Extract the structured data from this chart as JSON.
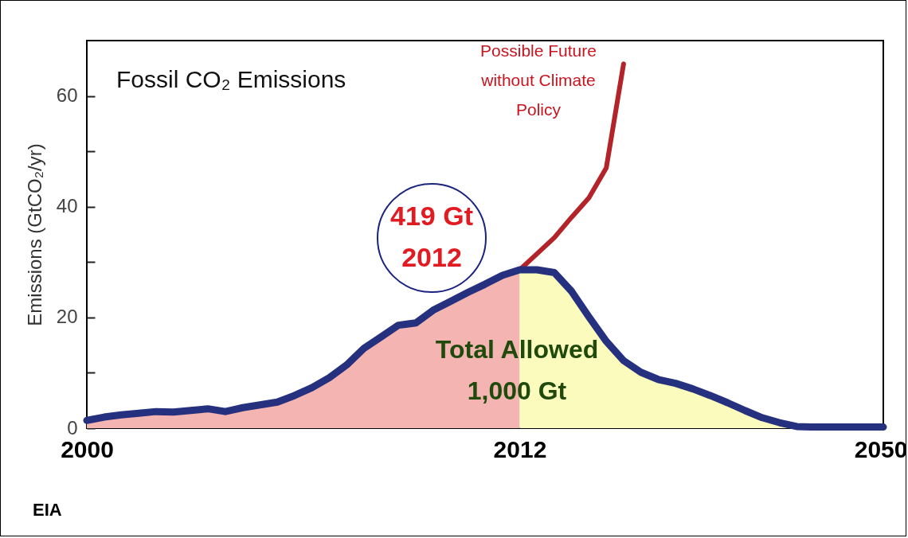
{
  "chart_data": {
    "type": "line",
    "title": "Fossil CO₂ Emissions",
    "ylabel": "Emissions (GtCO₂/yr)",
    "categories": [
      "2000",
      null,
      null,
      null,
      null,
      null,
      null,
      null,
      null,
      null,
      null,
      null,
      null,
      null,
      null,
      null,
      null,
      null,
      null,
      null,
      null,
      null,
      null,
      null,
      null,
      "2012",
      null,
      null,
      null,
      null,
      null,
      null,
      null,
      null,
      null,
      null,
      null,
      null,
      null,
      null,
      null,
      null,
      null,
      null,
      null,
      null,
      "2050"
    ],
    "series": [
      {
        "type": "area",
        "color": "#f4b5b2",
        "values": [
          1.4,
          2.0,
          2.4,
          2.7,
          3.0,
          2.9,
          3.2,
          3.5,
          3.0,
          3.7,
          4.2,
          4.7,
          5.9,
          7.3,
          9.1,
          11.4,
          14.4,
          16.5,
          18.6,
          19.0,
          21.3,
          22.9,
          24.5,
          26.0,
          27.6,
          28.6,
          null,
          null,
          null,
          null,
          null,
          null,
          null,
          null,
          null,
          null,
          null,
          null,
          null,
          null,
          null,
          null,
          null,
          null,
          null,
          null,
          null
        ]
      },
      {
        "type": "area",
        "color": "#fafbbd",
        "values": [
          null,
          null,
          null,
          null,
          null,
          null,
          null,
          null,
          null,
          null,
          null,
          null,
          null,
          null,
          null,
          null,
          null,
          null,
          null,
          null,
          null,
          null,
          null,
          null,
          null,
          28.6,
          28.6,
          28.1,
          24.7,
          20.1,
          15.7,
          12.2,
          10.1,
          8.8,
          8.1,
          7.1,
          5.9,
          4.6,
          3.2,
          1.9,
          1.0,
          0.3,
          0,
          null,
          null,
          null,
          null
        ]
      },
      {
        "type": "line",
        "color": "#b3242a",
        "values": [
          null,
          null,
          null,
          null,
          null,
          null,
          null,
          null,
          null,
          null,
          null,
          null,
          null,
          null,
          null,
          null,
          null,
          null,
          null,
          null,
          null,
          null,
          null,
          null,
          null,
          28.6,
          31.5,
          34.4,
          38.1,
          41.6,
          47.0,
          65.8,
          null,
          null,
          null,
          null,
          null,
          null,
          null,
          null,
          null,
          null,
          null,
          null,
          null,
          null,
          null
        ]
      },
      {
        "type": "line",
        "color": "#25307f",
        "values": [
          1.4,
          2.0,
          2.4,
          2.7,
          3.0,
          2.9,
          3.2,
          3.5,
          3.0,
          3.7,
          4.2,
          4.7,
          5.9,
          7.3,
          9.1,
          11.4,
          14.4,
          16.5,
          18.6,
          19.0,
          21.3,
          22.9,
          24.5,
          26.0,
          27.6,
          28.6,
          28.6,
          28.1,
          24.7,
          20.1,
          15.7,
          12.2,
          10.1,
          8.8,
          8.1,
          7.1,
          5.9,
          4.6,
          3.2,
          1.9,
          1.0,
          0.3,
          0.2,
          0.2,
          0.2,
          0.2,
          0.2
        ]
      }
    ],
    "ylim": [
      0,
      70
    ],
    "yticks": [
      0,
      {
        "value": 10,
        "label": null
      },
      20,
      {
        "value": 30,
        "label": null
      },
      40,
      {
        "value": 50,
        "label": null
      },
      60
    ],
    "grid": false,
    "annotations": [
      "Possible Future\nwithout Climate\nPolicy",
      "419 Gt\n2012",
      "Total Allowed\n1,000 Gt",
      "EIA"
    ]
  }
}
